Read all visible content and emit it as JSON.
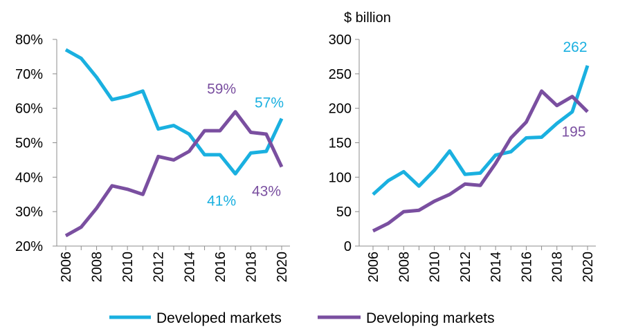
{
  "chart_data": [
    {
      "type": "line",
      "title": "",
      "ylabel": "",
      "x": [
        2006,
        2007,
        2008,
        2009,
        2010,
        2011,
        2012,
        2013,
        2014,
        2015,
        2016,
        2017,
        2018,
        2019,
        2020
      ],
      "x_tick_labels": [
        "2006",
        "2008",
        "2010",
        "2012",
        "2014",
        "2016",
        "2018",
        "2020"
      ],
      "ylim": [
        20,
        80
      ],
      "y_tick_labels": [
        "80%",
        "70%",
        "60%",
        "50%",
        "40%",
        "30%",
        "20%"
      ],
      "series": [
        {
          "name": "Developed markets",
          "color": "#1ab0e0",
          "values": [
            77,
            74.5,
            69,
            62.5,
            63.5,
            65,
            54,
            55,
            52.5,
            46.5,
            46.5,
            41,
            47,
            47.5,
            57
          ]
        },
        {
          "name": "Developing markets",
          "color": "#7a4fa0",
          "values": [
            23,
            25.5,
            31,
            37.5,
            36.5,
            35,
            46,
            45,
            47.5,
            53.5,
            53.5,
            59,
            53,
            52.5,
            43
          ]
        }
      ],
      "annotations": [
        {
          "text": "57%",
          "series": "Developed markets",
          "x": 2020,
          "y": 57
        },
        {
          "text": "41%",
          "series": "Developed markets",
          "x": 2017,
          "y": 41
        },
        {
          "text": "59%",
          "series": "Developing markets",
          "x": 2017,
          "y": 59
        },
        {
          "text": "43%",
          "series": "Developing markets",
          "x": 2020,
          "y": 43
        }
      ]
    },
    {
      "type": "line",
      "title": "",
      "ylabel": "$ billion",
      "x": [
        2006,
        2007,
        2008,
        2009,
        2010,
        2011,
        2012,
        2013,
        2014,
        2015,
        2016,
        2017,
        2018,
        2019,
        2020
      ],
      "x_tick_labels": [
        "2006",
        "2008",
        "2010",
        "2012",
        "2014",
        "2016",
        "2018",
        "2020"
      ],
      "ylim": [
        0,
        300
      ],
      "y_tick_labels": [
        "300",
        "250",
        "200",
        "150",
        "100",
        "50",
        "0"
      ],
      "series": [
        {
          "name": "Developed markets",
          "color": "#1ab0e0",
          "values": [
            75,
            95,
            108,
            87,
            110,
            138,
            104,
            106,
            132,
            137,
            157,
            158,
            178,
            195,
            262
          ]
        },
        {
          "name": "Developing markets",
          "color": "#7a4fa0",
          "values": [
            22,
            33,
            50,
            52,
            65,
            75,
            90,
            88,
            120,
            157,
            180,
            225,
            204,
            217,
            195
          ]
        }
      ],
      "annotations": [
        {
          "text": "262",
          "series": "Developed markets",
          "x": 2020,
          "y": 262
        },
        {
          "text": "195",
          "series": "Developing markets",
          "x": 2020,
          "y": 195
        }
      ]
    }
  ],
  "legend": {
    "placement": "bottom",
    "items": [
      {
        "label": "Developed markets",
        "color": "#1ab0e0"
      },
      {
        "label": "Developing markets",
        "color": "#7a4fa0"
      }
    ]
  }
}
